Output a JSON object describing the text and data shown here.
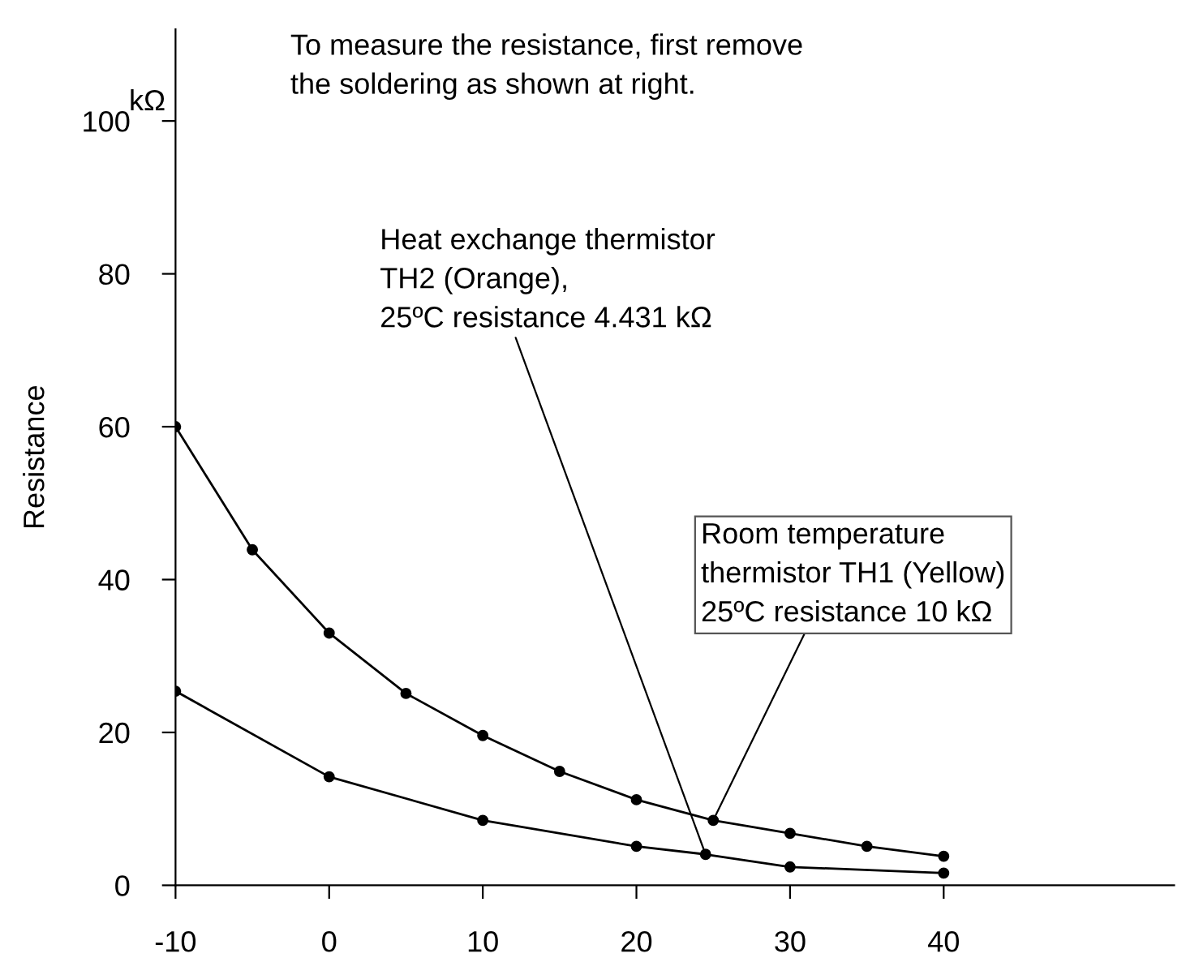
{
  "chart_data": {
    "type": "line",
    "ylabel": "Resistance",
    "series": [
      {
        "color": "#000000",
        "x": [
          -10,
          -5,
          0,
          5,
          10,
          15,
          20,
          25,
          30,
          35,
          40
        ],
        "values": [
          60,
          43.9,
          33.0,
          25.1,
          19.6,
          14.9,
          11.2,
          8.5,
          6.8,
          5.1,
          3.8
        ]
      },
      {
        "color": "#000000",
        "x": [
          -10,
          0,
          10,
          20,
          24.5,
          30,
          40
        ],
        "values": [
          25.4,
          14.2,
          8.5,
          5.1,
          4.05,
          2.4,
          1.6
        ]
      }
    ],
    "xlim": [
      -10,
      55
    ],
    "xticks": [
      -10,
      0,
      10,
      20,
      30,
      40
    ],
    "ylim": [
      0,
      112
    ],
    "yticks": [
      0,
      20,
      40,
      60,
      80,
      100
    ],
    "grid": false,
    "legend": false,
    "marker": "circle",
    "line_style": "solid",
    "annotations": [
      "kΩ",
      "To measure the resistance, first remove\nthe soldering as shown at right.",
      {
        "text": "Heat exchange thermistor\nTH2 (Orange),\n25ºC resistance 4.431 kΩ",
        "x": 24.5,
        "y": 4.05
      },
      {
        "text": "Room temperature\nthermistor TH1 (Yellow)\n25ºC resistance 10 kΩ",
        "x": 25,
        "y": 8.5
      }
    ]
  }
}
